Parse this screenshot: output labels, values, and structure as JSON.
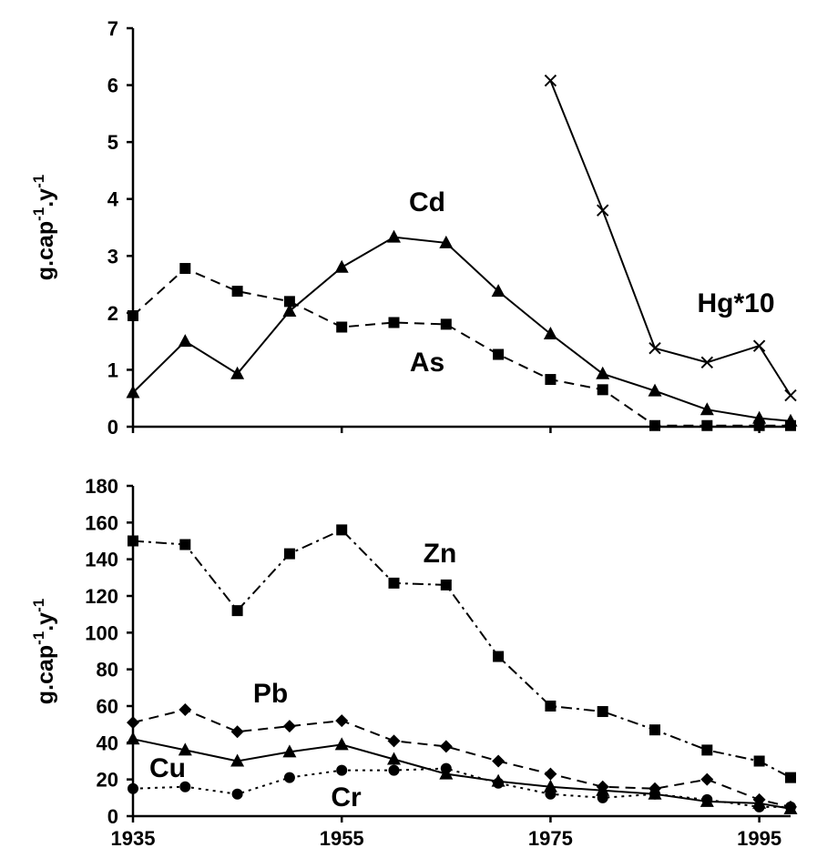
{
  "chart_data": [
    {
      "type": "line",
      "ylabel": "g.cap-1.y-1",
      "ylabel_parts": [
        "g.cap",
        "-1",
        ".y",
        "-1"
      ],
      "xlim": [
        1935,
        1998
      ],
      "ylim": [
        0,
        7
      ],
      "yticks": [
        0,
        1,
        2,
        3,
        4,
        5,
        6,
        7
      ],
      "xticks": [
        1935,
        1955,
        1975,
        1995
      ],
      "series": [
        {
          "name": "Cd",
          "marker": "triangle",
          "dash": "solid",
          "x": [
            1935,
            1940,
            1945,
            1950,
            1955,
            1960,
            1965,
            1970,
            1975,
            1980,
            1985,
            1990,
            1995,
            1998
          ],
          "values": [
            0.6,
            1.5,
            0.93,
            2.03,
            2.8,
            3.33,
            3.23,
            2.38,
            1.63,
            0.93,
            0.63,
            0.3,
            0.15,
            0.1
          ]
        },
        {
          "name": "As",
          "marker": "square",
          "dash": "dashed",
          "x": [
            1935,
            1940,
            1945,
            1950,
            1955,
            1960,
            1965,
            1970,
            1975,
            1980,
            1985,
            1990,
            1995,
            1998
          ],
          "values": [
            1.95,
            2.78,
            2.38,
            2.2,
            1.75,
            1.83,
            1.8,
            1.27,
            0.83,
            0.65,
            0.02,
            0.02,
            0.02,
            0.02
          ]
        },
        {
          "name": "Hg*10",
          "marker": "x",
          "dash": "solid",
          "x": [
            1975,
            1980,
            1985,
            1990,
            1995,
            1998
          ],
          "values": [
            6.08,
            3.8,
            1.38,
            1.13,
            1.42,
            0.55
          ]
        }
      ]
    },
    {
      "type": "line",
      "ylabel": "g.cap-1.y-1",
      "ylabel_parts": [
        "g.cap",
        "-1",
        ".y",
        "-1"
      ],
      "xlim": [
        1935,
        1998
      ],
      "ylim": [
        0,
        180
      ],
      "yticks": [
        0,
        20,
        40,
        60,
        80,
        100,
        120,
        140,
        160,
        180
      ],
      "xticks": [
        1935,
        1955,
        1975,
        1995
      ],
      "series": [
        {
          "name": "Zn",
          "marker": "square",
          "dash": "dashdot",
          "x": [
            1935,
            1940,
            1945,
            1950,
            1955,
            1960,
            1965,
            1970,
            1975,
            1980,
            1985,
            1990,
            1995,
            1998
          ],
          "values": [
            150,
            148,
            112,
            143,
            156,
            127,
            126,
            87,
            60,
            57,
            47,
            36,
            30,
            21
          ]
        },
        {
          "name": "Pb",
          "marker": "diamond",
          "dash": "dashed",
          "x": [
            1935,
            1940,
            1945,
            1950,
            1955,
            1960,
            1965,
            1970,
            1975,
            1980,
            1985,
            1990,
            1995,
            1998
          ],
          "values": [
            51,
            58,
            46,
            49,
            52,
            41,
            38,
            30,
            23,
            16,
            15,
            20,
            9,
            5
          ]
        },
        {
          "name": "Cu",
          "marker": "triangle",
          "dash": "solid",
          "x": [
            1935,
            1940,
            1945,
            1950,
            1955,
            1960,
            1965,
            1970,
            1975,
            1980,
            1985,
            1990,
            1995,
            1998
          ],
          "values": [
            42,
            36,
            30,
            35,
            39,
            31,
            23,
            19,
            16,
            14,
            12,
            8,
            7,
            4
          ]
        },
        {
          "name": "Cr",
          "marker": "circle",
          "dash": "dotted",
          "x": [
            1935,
            1940,
            1945,
            1950,
            1955,
            1960,
            1965,
            1970,
            1975,
            1980,
            1985,
            1990,
            1995,
            1998
          ],
          "values": [
            15,
            16,
            12,
            21,
            25,
            25,
            26,
            18,
            12,
            10,
            12,
            9,
            5,
            5
          ]
        }
      ]
    }
  ]
}
